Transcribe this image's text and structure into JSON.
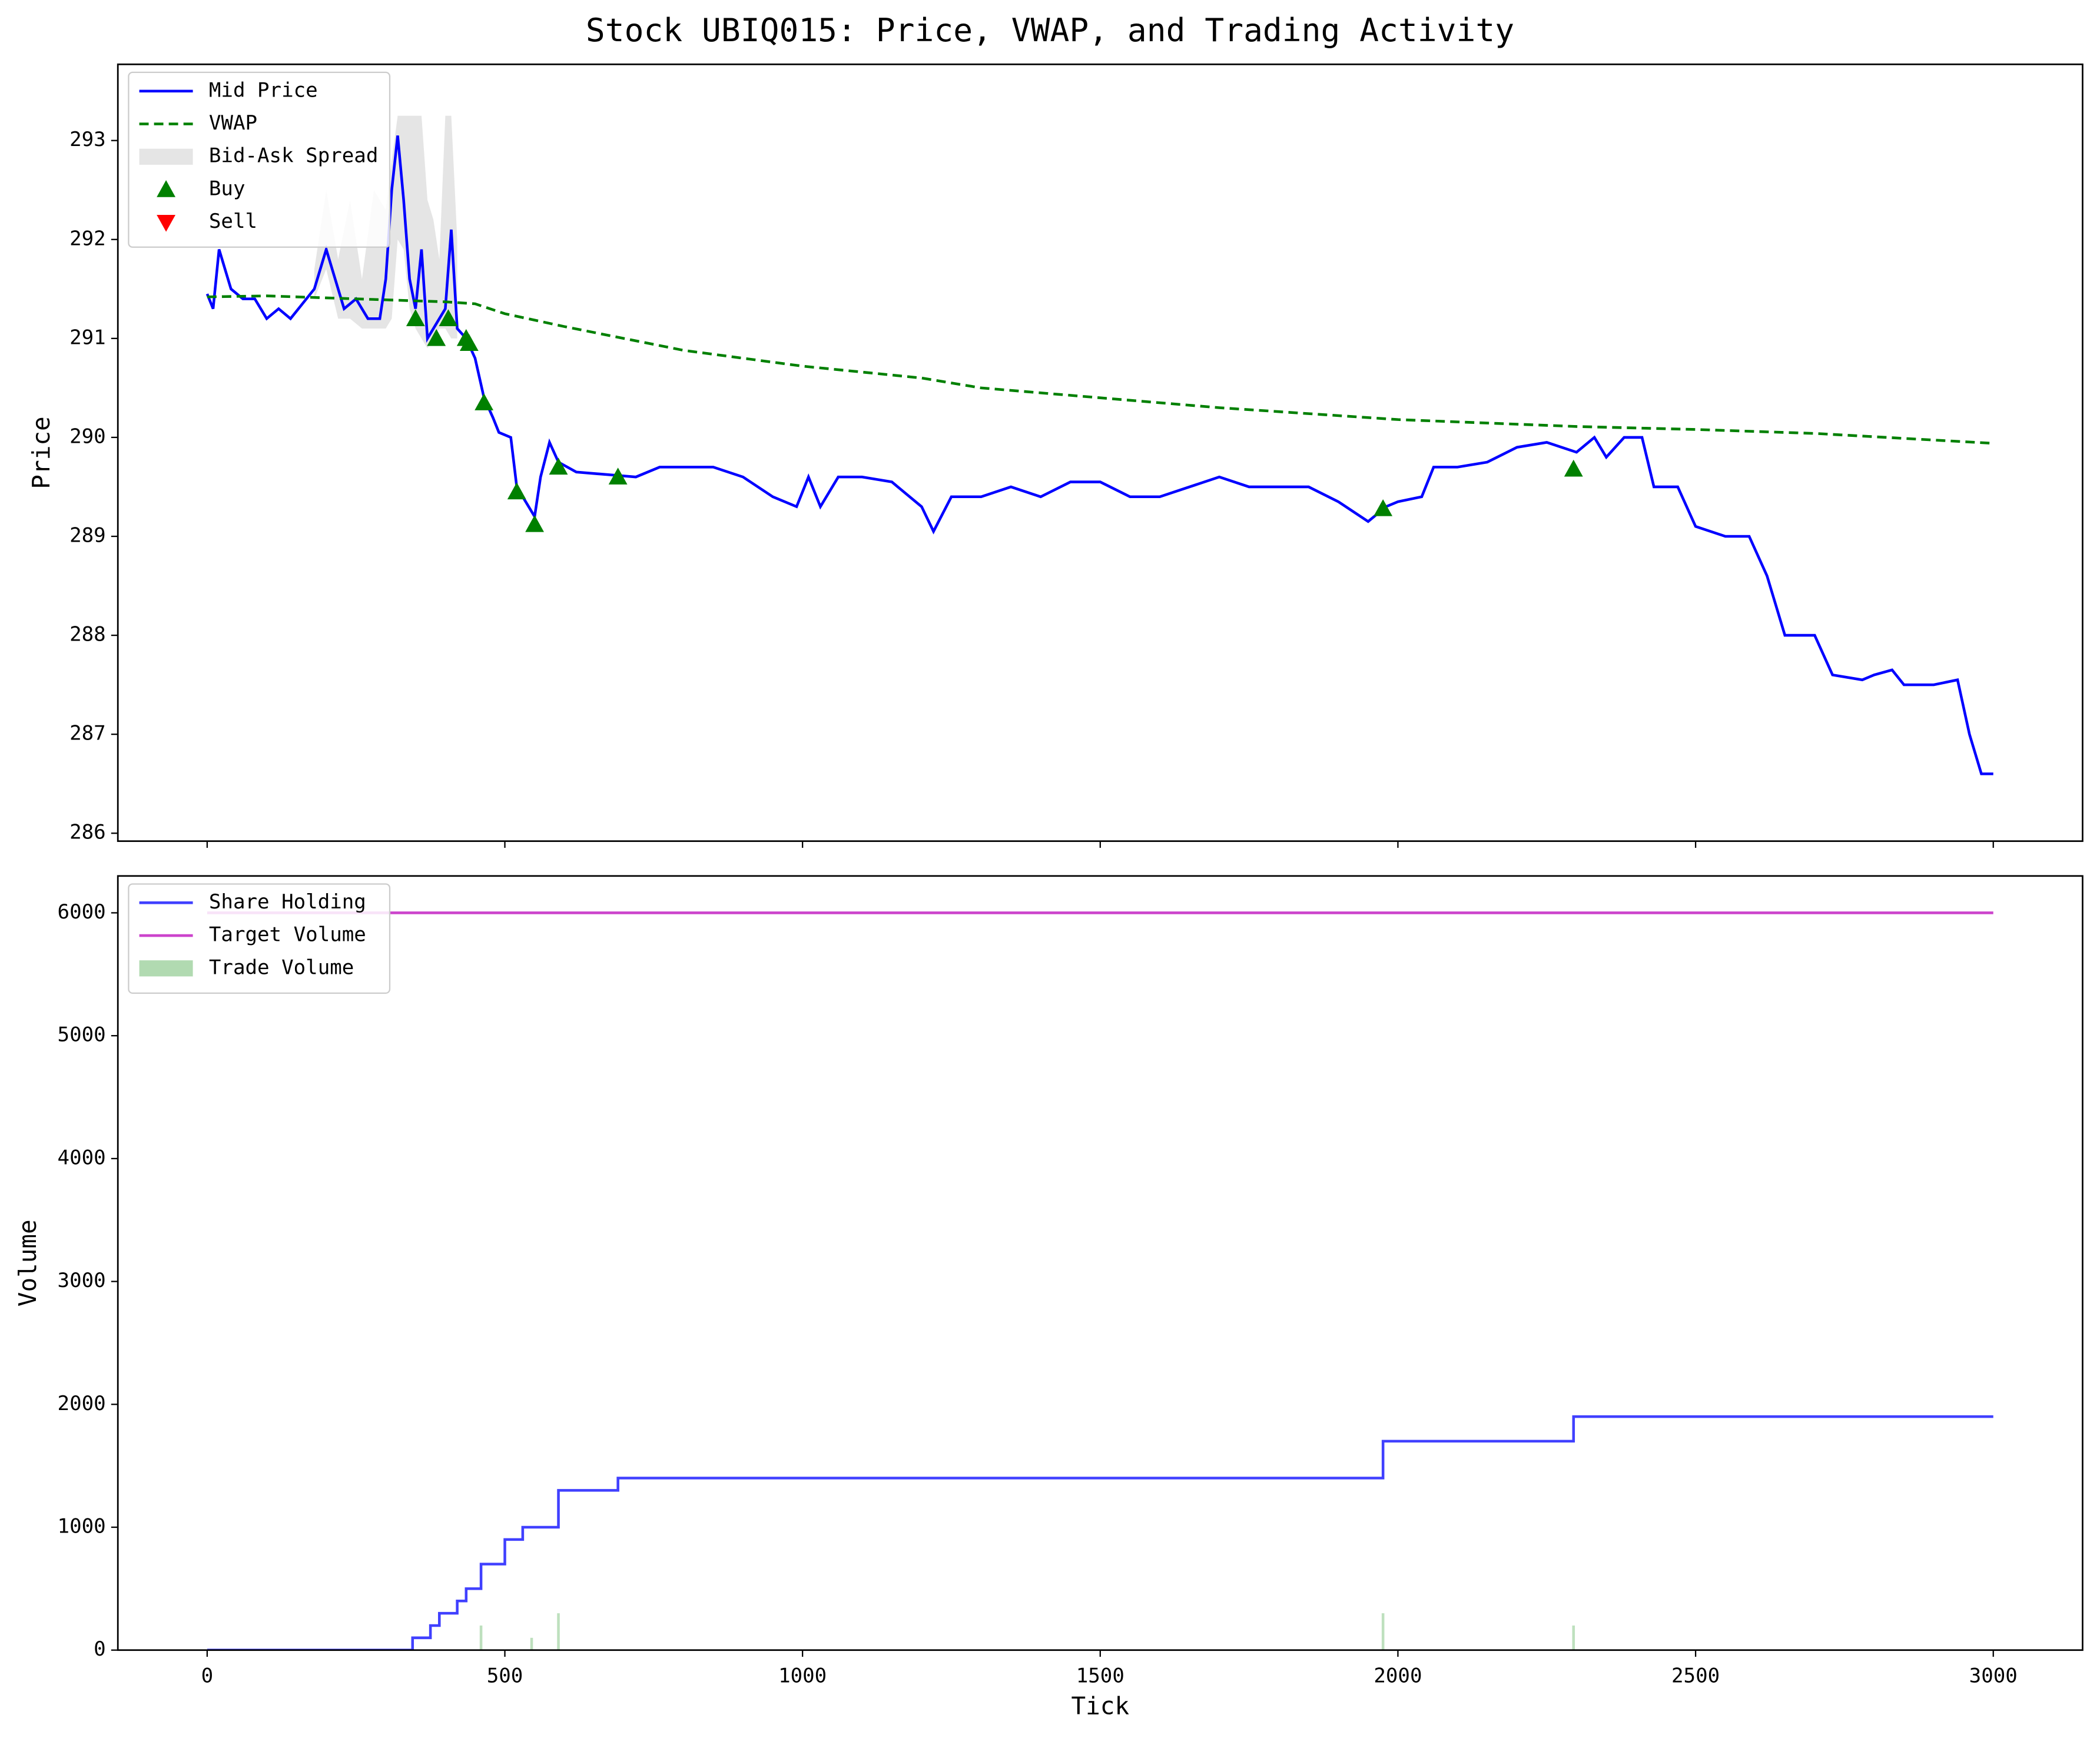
{
  "title": "Stock UBIQ015: Price, VWAP, and Trading Activity",
  "chart_data": [
    {
      "type": "line",
      "ylabel": "Price",
      "legend": "upper left",
      "xlim": [
        -150,
        3150
      ],
      "ylim": [
        285.92,
        293.77
      ],
      "xticks": [
        0,
        500,
        1000,
        1500,
        2000,
        2500,
        3000
      ],
      "yticks": [
        286,
        287,
        288,
        289,
        290,
        291,
        292,
        293
      ],
      "series": [
        {
          "name": "Mid Price",
          "kind": "line",
          "color": "#0000ff",
          "x": [
            0,
            10,
            20,
            40,
            60,
            80,
            100,
            120,
            140,
            160,
            180,
            200,
            215,
            230,
            250,
            270,
            290,
            300,
            310,
            320,
            330,
            340,
            350,
            360,
            370,
            380,
            390,
            400,
            410,
            420,
            435,
            450,
            465,
            480,
            490,
            510,
            520,
            540,
            550,
            560,
            575,
            590,
            620,
            680,
            720,
            760,
            800,
            850,
            900,
            950,
            990,
            1010,
            1030,
            1060,
            1100,
            1150,
            1200,
            1220,
            1250,
            1300,
            1350,
            1400,
            1450,
            1500,
            1550,
            1600,
            1650,
            1700,
            1750,
            1800,
            1850,
            1900,
            1950,
            1980,
            2000,
            2040,
            2060,
            2100,
            2150,
            2200,
            2250,
            2300,
            2330,
            2350,
            2380,
            2410,
            2430,
            2470,
            2500,
            2550,
            2590,
            2620,
            2650,
            2700,
            2730,
            2780,
            2800,
            2830,
            2850,
            2900,
            2940,
            2960,
            2980,
            3000
          ],
          "values": [
            291.45,
            291.3,
            291.9,
            291.5,
            291.4,
            291.4,
            291.2,
            291.3,
            291.2,
            291.35,
            291.5,
            291.9,
            291.6,
            291.3,
            291.4,
            291.2,
            291.2,
            291.6,
            292.5,
            293.05,
            292.4,
            291.6,
            291.3,
            291.9,
            291.0,
            291.1,
            291.2,
            291.3,
            292.1,
            291.1,
            291.0,
            290.8,
            290.4,
            290.2,
            290.05,
            290.0,
            289.5,
            289.3,
            289.2,
            289.6,
            289.95,
            289.75,
            289.65,
            289.62,
            289.6,
            289.7,
            289.7,
            289.7,
            289.6,
            289.4,
            289.3,
            289.6,
            289.3,
            289.6,
            289.6,
            289.55,
            289.3,
            289.05,
            289.4,
            289.4,
            289.5,
            289.4,
            289.55,
            289.55,
            289.4,
            289.4,
            289.5,
            289.6,
            289.5,
            289.5,
            289.5,
            289.35,
            289.15,
            289.3,
            289.35,
            289.4,
            289.7,
            289.7,
            289.75,
            289.9,
            289.95,
            289.85,
            290.0,
            289.8,
            290.0,
            290.0,
            289.5,
            289.5,
            289.1,
            289.0,
            289.0,
            288.6,
            288.0,
            288.0,
            287.6,
            287.55,
            287.6,
            287.65,
            287.5,
            287.5,
            287.55,
            287.0,
            286.6,
            286.6
          ]
        },
        {
          "name": "VWAP",
          "kind": "line",
          "linestyle": "dashed",
          "color": "#008000",
          "x": [
            0,
            100,
            200,
            300,
            400,
            450,
            500,
            600,
            700,
            800,
            1000,
            1200,
            1300,
            1500,
            1700,
            2000,
            2300,
            2500,
            2700,
            3000
          ],
          "values": [
            291.42,
            291.43,
            291.41,
            291.39,
            291.37,
            291.35,
            291.25,
            291.12,
            291.0,
            290.88,
            290.72,
            290.6,
            290.5,
            290.4,
            290.3,
            290.18,
            290.11,
            290.08,
            290.04,
            289.94
          ]
        },
        {
          "name": "Bid-Ask Spread",
          "kind": "area",
          "color": "#d3d3d3",
          "x": [
            180,
            200,
            220,
            240,
            260,
            280,
            300,
            310,
            320,
            330,
            340,
            350,
            360,
            370,
            380,
            390,
            400,
            410,
            420
          ],
          "lower": [
            291.4,
            291.7,
            291.2,
            291.2,
            291.1,
            291.1,
            291.1,
            291.2,
            292.0,
            291.9,
            291.3,
            291.1,
            291.0,
            290.9,
            291.0,
            291.1,
            291.1,
            291.0,
            291.0
          ],
          "upper": [
            291.7,
            292.5,
            291.8,
            292.4,
            291.6,
            292.5,
            292.3,
            292.8,
            293.25,
            293.25,
            293.25,
            293.25,
            293.25,
            292.4,
            292.2,
            291.8,
            293.25,
            293.25,
            292.0
          ]
        },
        {
          "name": "Buy",
          "kind": "scatter",
          "marker": "^",
          "color": "#008000",
          "x": [
            350,
            385,
            405,
            435,
            440,
            465,
            520,
            550,
            590,
            690,
            1975,
            2295
          ],
          "values": [
            291.2,
            291.0,
            291.2,
            291.0,
            290.95,
            290.35,
            289.45,
            289.12,
            289.7,
            289.6,
            289.28,
            289.68
          ]
        },
        {
          "name": "Sell",
          "kind": "scatter",
          "marker": "v",
          "color": "#ff0000",
          "x": [],
          "values": []
        }
      ]
    },
    {
      "type": "line",
      "xlabel": "Tick",
      "ylabel": "Volume",
      "legend": "upper left",
      "xlim": [
        -150,
        3150
      ],
      "ylim": [
        0,
        6300
      ],
      "xticks": [
        0,
        500,
        1000,
        1500,
        2000,
        2500,
        3000
      ],
      "yticks": [
        0,
        1000,
        2000,
        3000,
        4000,
        5000,
        6000
      ],
      "series": [
        {
          "name": "Share Holding",
          "kind": "line",
          "step": "post",
          "color": "#4040ff",
          "x": [
            0,
            345,
            375,
            390,
            420,
            435,
            460,
            500,
            530,
            590,
            690,
            1975,
            2295,
            3000
          ],
          "values": [
            0,
            100,
            200,
            300,
            400,
            500,
            700,
            900,
            1000,
            1300,
            1400,
            1700,
            1900,
            1900
          ]
        },
        {
          "name": "Target Volume",
          "kind": "line",
          "color": "#cc44cc",
          "x": [
            0,
            3000
          ],
          "values": [
            6000,
            6000
          ]
        },
        {
          "name": "Trade Volume",
          "kind": "bar",
          "color": "#a3d3a3",
          "x": [
            460,
            545,
            590,
            1975,
            2295
          ],
          "values": [
            200,
            100,
            300,
            300,
            200
          ]
        }
      ]
    }
  ]
}
